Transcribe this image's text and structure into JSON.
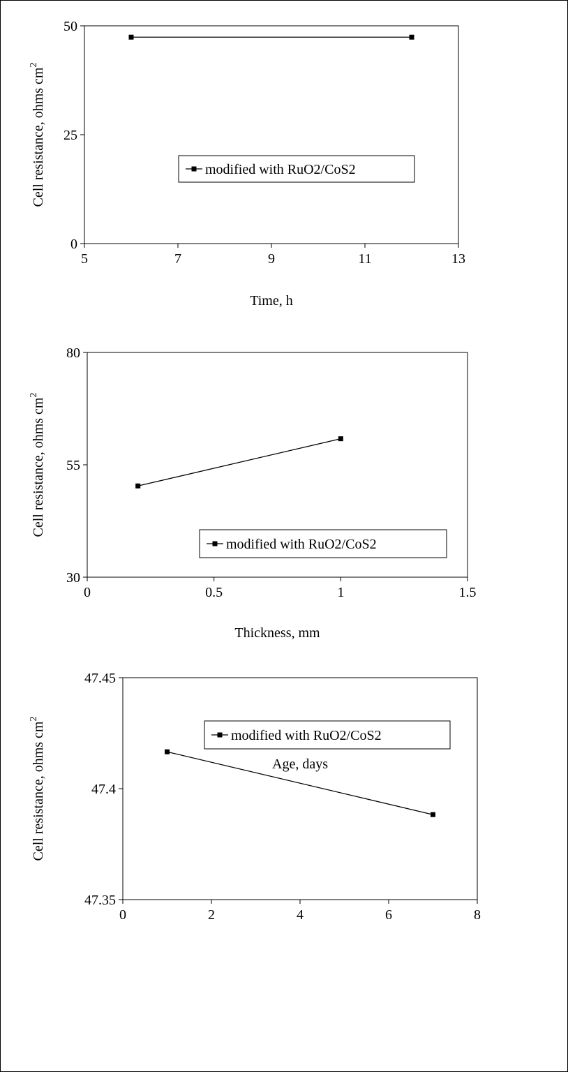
{
  "chart_data": [
    {
      "type": "line",
      "xlabel": "Time, h",
      "ylabel": "Cell resistance, ohms cm",
      "ylabel_superscript": "2",
      "xlim": [
        5,
        13
      ],
      "ylim": [
        0,
        50
      ],
      "x_ticks": [
        "5",
        "7",
        "9",
        "11",
        "13"
      ],
      "y_ticks": [
        "0",
        "25",
        "50"
      ],
      "legend_position": "center-right",
      "grid": false,
      "series": [
        {
          "name": "modified with RuO2/CoS2",
          "x": [
            6,
            12
          ],
          "y": [
            47.4,
            47.4
          ]
        }
      ]
    },
    {
      "type": "line",
      "xlabel": "Thickness, mm",
      "ylabel": "Cell resistance, ohms cm",
      "ylabel_superscript": "2",
      "xlim": [
        0,
        1.5
      ],
      "ylim": [
        30,
        80
      ],
      "x_ticks": [
        "0",
        "0.5",
        "1",
        "1.5"
      ],
      "y_ticks": [
        "30",
        "55",
        "80"
      ],
      "legend_position": "bottom-right",
      "grid": false,
      "series": [
        {
          "name": "modified with RuO2/CoS2",
          "x": [
            0.2,
            1
          ],
          "y": [
            50.3,
            60.8
          ]
        }
      ]
    },
    {
      "type": "line",
      "xlabel": "Age, days",
      "ylabel": "Cell resistance, ohms cm",
      "ylabel_superscript": "2",
      "xlim": [
        0,
        8
      ],
      "ylim": [
        47.35,
        47.45
      ],
      "x_ticks": [
        "0",
        "2",
        "4",
        "6",
        "8"
      ],
      "y_ticks": [
        "47.35",
        "47.4",
        "47.45"
      ],
      "legend_position": "top-right",
      "grid": false,
      "series": [
        {
          "name": "modified with RuO2/CoS2",
          "x": [
            1,
            7
          ],
          "y": [
            47.4166,
            47.3883
          ]
        }
      ]
    }
  ]
}
